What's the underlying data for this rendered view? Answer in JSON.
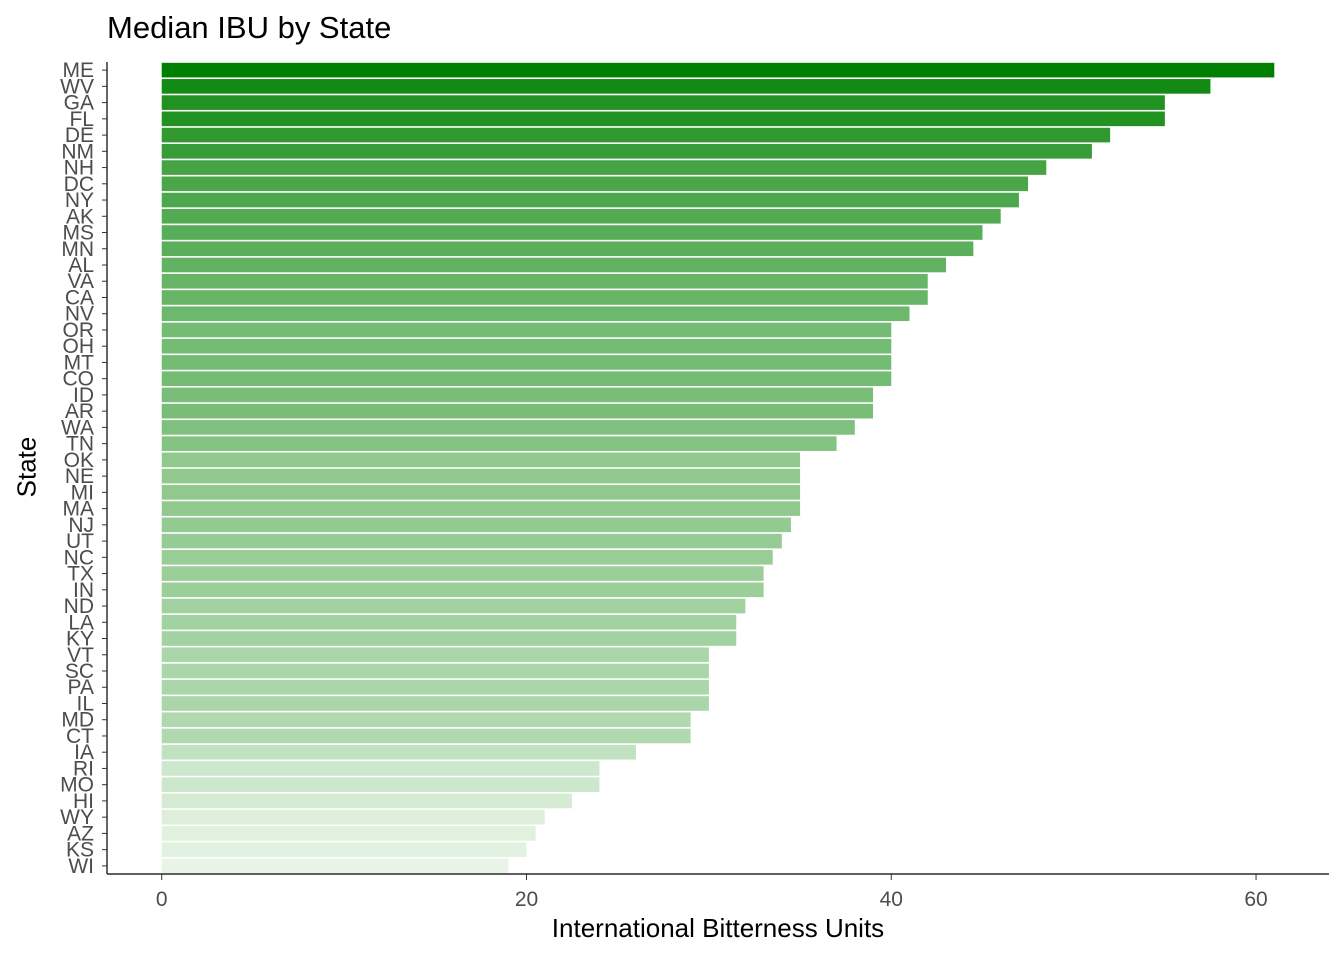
{
  "chart_data": {
    "type": "bar",
    "orientation": "horizontal",
    "title": "Median IBU by State",
    "xlabel": "International Bitterness Units",
    "ylabel": "State",
    "xlim": [
      -3,
      64
    ],
    "xticks": [
      0,
      20,
      40,
      60
    ],
    "grid": false,
    "legend": "none",
    "color_range": [
      "#e8f5e6",
      "#008000"
    ],
    "categories": [
      "ME",
      "WV",
      "GA",
      "FL",
      "DE",
      "NM",
      "NH",
      "DC",
      "NY",
      "AK",
      "MS",
      "MN",
      "AL",
      "VA",
      "CA",
      "NV",
      "OR",
      "OH",
      "MT",
      "CO",
      "ID",
      "AR",
      "WA",
      "TN",
      "OK",
      "NE",
      "MI",
      "MA",
      "NJ",
      "UT",
      "NC",
      "TX",
      "IN",
      "ND",
      "LA",
      "KY",
      "VT",
      "SC",
      "PA",
      "IL",
      "MD",
      "CT",
      "IA",
      "RI",
      "MO",
      "HI",
      "WY",
      "AZ",
      "KS",
      "WI"
    ],
    "values": [
      61,
      57.5,
      55,
      55,
      52,
      51,
      48.5,
      47.5,
      47,
      46,
      45,
      44.5,
      43,
      42,
      42,
      41,
      40,
      40,
      40,
      40,
      39,
      39,
      38,
      37,
      35,
      35,
      35,
      35,
      34.5,
      34,
      33.5,
      33,
      33,
      32,
      31.5,
      31.5,
      30,
      30,
      30,
      30,
      29,
      29,
      26,
      24,
      24,
      22.5,
      21,
      20.5,
      20,
      19
    ]
  }
}
